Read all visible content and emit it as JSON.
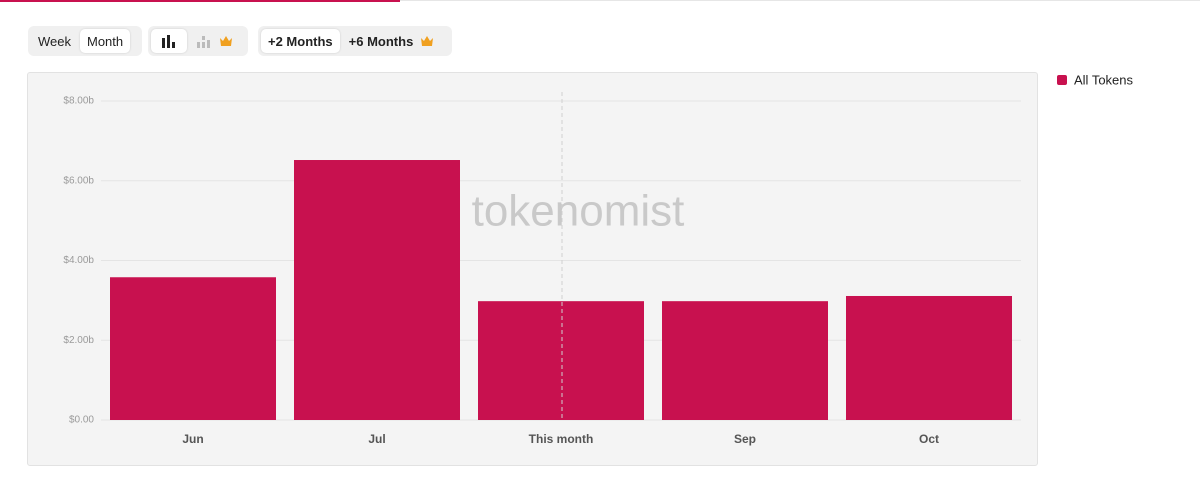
{
  "toolbar": {
    "period": [
      "Week",
      "Month"
    ],
    "range": [
      "+2 Months",
      "+6 Months"
    ]
  },
  "chart_data": {
    "type": "bar",
    "watermark": "tokenomist",
    "categories": [
      "Jun",
      "Jul",
      "This month",
      "Sep",
      "Oct"
    ],
    "series": [
      {
        "name": "All Tokens",
        "color": "#c8114f",
        "values": [
          3.58,
          6.52,
          2.98,
          2.98,
          3.11
        ]
      }
    ],
    "ylim": [
      0,
      8
    ],
    "yticks": [
      {
        "value": 0,
        "label": "$0.00"
      },
      {
        "value": 2,
        "label": "$2.00b"
      },
      {
        "value": 4,
        "label": "$4.00b"
      },
      {
        "value": 6,
        "label": "$6.00b"
      },
      {
        "value": 8,
        "label": "$8.00b"
      }
    ],
    "grid": true,
    "legend": "right"
  }
}
